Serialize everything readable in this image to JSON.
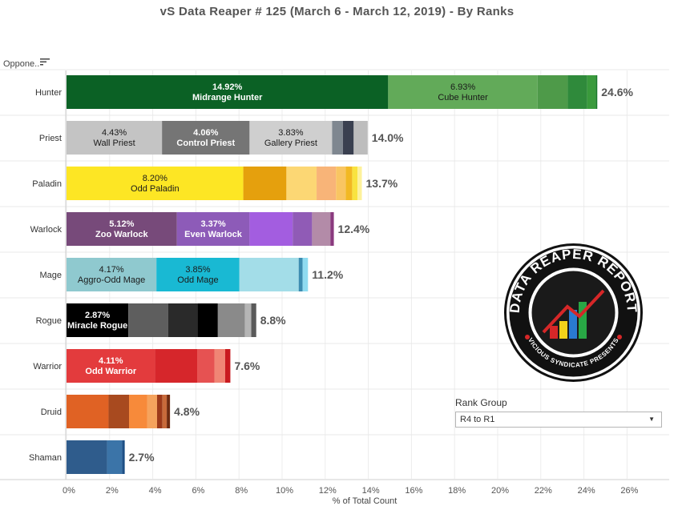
{
  "title": "vS Data Reaper #  125 (March 6 - March 12, 2019) - By Ranks",
  "opponent_header": "Oppone..",
  "rank_filter": {
    "label": "Rank Group",
    "selected": "R4 to R1"
  },
  "logo": {
    "text_top": "DATA REAPER REPORT",
    "text_bottom": "VICIOUS SYNDICATE PRESENTS"
  },
  "chart_data": {
    "type": "bar",
    "orientation": "horizontal",
    "stacked": true,
    "xlabel": "% of Total Count",
    "xlim": [
      0,
      27
    ],
    "xticks": [
      0,
      2,
      4,
      6,
      8,
      10,
      12,
      14,
      16,
      18,
      20,
      22,
      24,
      26
    ],
    "xtick_labels": [
      "0%",
      "2%",
      "4%",
      "6%",
      "8%",
      "10%",
      "12%",
      "14%",
      "16%",
      "18%",
      "20%",
      "22%",
      "24%",
      "26%"
    ],
    "categories": [
      {
        "name": "Hunter",
        "total_label": "24.6%",
        "segments": [
          {
            "value": 14.92,
            "color": "#0b6125",
            "label": "14.92%",
            "archetype": "Midrange Hunter",
            "text": "#ffffff",
            "bold": true
          },
          {
            "value": 6.93,
            "color": "#62aa59",
            "label": "6.93%",
            "archetype": "Cube Hunter",
            "text": "#1a1a1a",
            "bold": false
          },
          {
            "value": 1.4,
            "color": "#4e9a49",
            "label": "",
            "archetype": ""
          },
          {
            "value": 0.9,
            "color": "#2f8a3b",
            "label": "",
            "archetype": ""
          },
          {
            "value": 0.4,
            "color": "#3a9a3c",
            "label": "",
            "archetype": ""
          },
          {
            "value": 0.07,
            "color": "#1a7a2a",
            "label": "",
            "archetype": ""
          }
        ]
      },
      {
        "name": "Priest",
        "total_label": "14.0%",
        "segments": [
          {
            "value": 4.43,
            "color": "#c4c4c4",
            "label": "4.43%",
            "archetype": "Wall Priest",
            "text": "#1a1a1a",
            "bold": false
          },
          {
            "value": 4.06,
            "color": "#757575",
            "label": "4.06%",
            "archetype": "Control Priest",
            "text": "#ffffff",
            "bold": true
          },
          {
            "value": 3.83,
            "color": "#cfcfcf",
            "label": "3.83%",
            "archetype": "Gallery Priest",
            "text": "#1a1a1a",
            "bold": false
          },
          {
            "value": 0.5,
            "color": "#7f8790",
            "label": "",
            "archetype": ""
          },
          {
            "value": 0.5,
            "color": "#3a4050",
            "label": "",
            "archetype": ""
          },
          {
            "value": 0.65,
            "color": "#bdbdbd",
            "label": "",
            "archetype": ""
          }
        ]
      },
      {
        "name": "Paladin",
        "total_label": "13.7%",
        "segments": [
          {
            "value": 8.2,
            "color": "#fde624",
            "label": "8.20%",
            "archetype": "Odd Paladin",
            "text": "#1a1a1a",
            "bold": false
          },
          {
            "value": 2.0,
            "color": "#e5a00d",
            "label": "",
            "archetype": ""
          },
          {
            "value": 1.4,
            "color": "#fcd774",
            "label": "",
            "archetype": ""
          },
          {
            "value": 0.9,
            "color": "#f8b478",
            "label": "",
            "archetype": ""
          },
          {
            "value": 0.45,
            "color": "#f9c562",
            "label": "",
            "archetype": ""
          },
          {
            "value": 0.3,
            "color": "#f2b823",
            "label": "",
            "archetype": ""
          },
          {
            "value": 0.25,
            "color": "#f9e33f",
            "label": "",
            "archetype": ""
          },
          {
            "value": 0.2,
            "color": "#fdf19b",
            "label": "",
            "archetype": ""
          }
        ]
      },
      {
        "name": "Warlock",
        "total_label": "12.4%",
        "segments": [
          {
            "value": 5.12,
            "color": "#774a7a",
            "label": "5.12%",
            "archetype": "Zoo Warlock",
            "text": "#ffffff",
            "bold": true
          },
          {
            "value": 3.37,
            "color": "#8d5bb8",
            "label": "3.37%",
            "archetype": "Even Warlock",
            "text": "#ffffff",
            "bold": true
          },
          {
            "value": 2.0,
            "color": "#a35de0",
            "label": "",
            "archetype": ""
          },
          {
            "value": 0.9,
            "color": "#905bb6",
            "label": "",
            "archetype": ""
          },
          {
            "value": 0.85,
            "color": "#b38ba8",
            "label": "",
            "archetype": ""
          },
          {
            "value": 0.16,
            "color": "#8a3a7e",
            "label": "",
            "archetype": ""
          }
        ]
      },
      {
        "name": "Mage",
        "total_label": "11.2%",
        "segments": [
          {
            "value": 4.17,
            "color": "#8fc9cf",
            "label": "4.17%",
            "archetype": "Aggro-Odd Mage",
            "text": "#1a1a1a",
            "bold": false
          },
          {
            "value": 3.85,
            "color": "#19b9d3",
            "label": "3.85%",
            "archetype": "Odd Mage",
            "text": "#1a1a1a",
            "bold": false
          },
          {
            "value": 2.75,
            "color": "#a3dde8",
            "label": "",
            "archetype": ""
          },
          {
            "value": 0.18,
            "color": "#3c8db1",
            "label": "",
            "archetype": ""
          },
          {
            "value": 0.25,
            "color": "#8fdbf0",
            "label": "",
            "archetype": ""
          }
        ]
      },
      {
        "name": "Rogue",
        "total_label": "8.8%",
        "segments": [
          {
            "value": 2.87,
            "color": "#000000",
            "label": "2.87%",
            "archetype": "Miracle Rogue",
            "text": "#ffffff",
            "bold": true
          },
          {
            "value": 1.85,
            "color": "#5e5e5e",
            "label": "",
            "archetype": ""
          },
          {
            "value": 1.35,
            "color": "#2a2a2a",
            "label": "",
            "archetype": ""
          },
          {
            "value": 0.95,
            "color": "#000000",
            "label": "",
            "archetype": ""
          },
          {
            "value": 1.25,
            "color": "#8a8a8a",
            "label": "",
            "archetype": ""
          },
          {
            "value": 0.3,
            "color": "#b5b5b5",
            "label": "",
            "archetype": ""
          },
          {
            "value": 0.23,
            "color": "#5a5a5a",
            "label": "",
            "archetype": ""
          }
        ]
      },
      {
        "name": "Warrior",
        "total_label": "7.6%",
        "segments": [
          {
            "value": 4.11,
            "color": "#e33b3d",
            "label": "4.11%",
            "archetype": "Odd Warrior",
            "text": "#ffffff",
            "bold": true
          },
          {
            "value": 1.95,
            "color": "#d6262b",
            "label": "",
            "archetype": ""
          },
          {
            "value": 0.8,
            "color": "#e65252",
            "label": "",
            "archetype": ""
          },
          {
            "value": 0.5,
            "color": "#f08575",
            "label": "",
            "archetype": ""
          },
          {
            "value": 0.24,
            "color": "#c91a1f",
            "label": "",
            "archetype": ""
          }
        ]
      },
      {
        "name": "Druid",
        "total_label": "4.8%",
        "segments": [
          {
            "value": 1.95,
            "color": "#e06224",
            "label": "",
            "archetype": ""
          },
          {
            "value": 0.95,
            "color": "#a84a1f",
            "label": "",
            "archetype": ""
          },
          {
            "value": 0.85,
            "color": "#f78a3a",
            "label": "",
            "archetype": ""
          },
          {
            "value": 0.45,
            "color": "#f5a35d",
            "label": "",
            "archetype": ""
          },
          {
            "value": 0.25,
            "color": "#9d3a1a",
            "label": "",
            "archetype": ""
          },
          {
            "value": 0.2,
            "color": "#c86a3a",
            "label": "",
            "archetype": ""
          },
          {
            "value": 0.15,
            "color": "#6e2a10",
            "label": "",
            "archetype": ""
          }
        ]
      },
      {
        "name": "Shaman",
        "total_label": "2.7%",
        "segments": [
          {
            "value": 1.88,
            "color": "#2f5c8c",
            "label": "",
            "archetype": ""
          },
          {
            "value": 0.7,
            "color": "#3b74a8",
            "label": "",
            "archetype": ""
          },
          {
            "value": 0.12,
            "color": "#1d4f85",
            "label": "",
            "archetype": ""
          }
        ]
      }
    ]
  }
}
